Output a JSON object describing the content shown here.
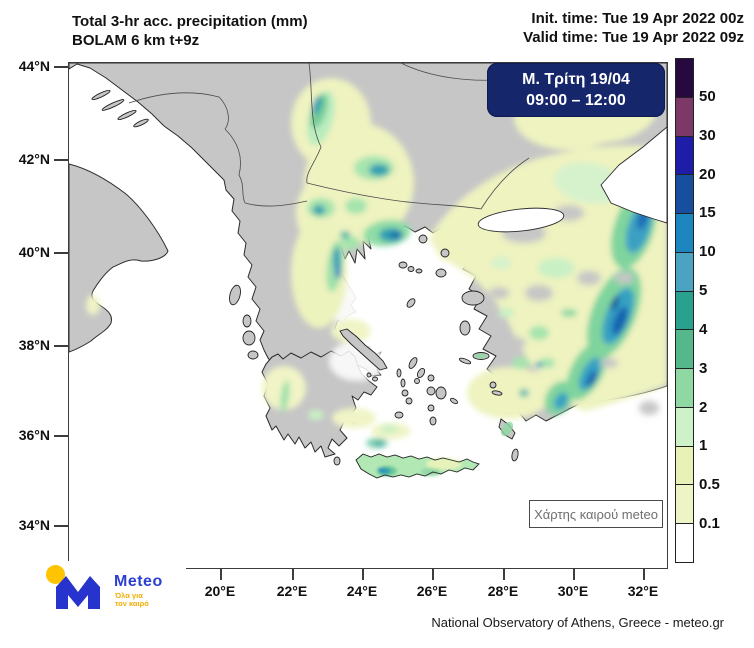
{
  "header": {
    "title_line1": "Total 3-hr acc. precipitation (mm)",
    "title_line2": "BOLAM 6 km t+9z",
    "init_time": "Init. time: Tue 19 Apr 2022 00z",
    "valid_time": "Valid time: Tue 19 Apr 2022 09z"
  },
  "badge": {
    "line1": "Μ. Τρίτη 19/04",
    "line2": "09:00 – 12:00",
    "bg_color": "#16266b",
    "text_color": "#ffffff"
  },
  "map": {
    "lat_labels": [
      "44°N",
      "42°N",
      "40°N",
      "38°N",
      "36°N",
      "34°N"
    ],
    "lon_labels": [
      "20°E",
      "22°E",
      "24°E",
      "26°E",
      "28°E",
      "30°E",
      "32°E"
    ],
    "land_color": "#c6c6c6",
    "sea_color": "#ffffff"
  },
  "colorbar": {
    "unit": "mm",
    "labels": [
      "50",
      "30",
      "20",
      "15",
      "10",
      "5",
      "4",
      "3",
      "2",
      "1",
      "0.5",
      "0.1"
    ],
    "colors": [
      "#26093f",
      "#7c3867",
      "#1d1da8",
      "#174f9e",
      "#1d86c0",
      "#4aa3c0",
      "#2aa18f",
      "#55b88c",
      "#8fd8a4",
      "#cdf2c9",
      "#e9f2b6",
      "#eef4c6",
      "#ffffff"
    ]
  },
  "tooltip": {
    "text": "Χάρτης καιρού meteo"
  },
  "logo": {
    "brand": "Meteo",
    "tagline_line1": "Όλα για",
    "tagline_line2": "τον καιρό",
    "brand_color": "#2b3fd0",
    "sun_color": "#ffc400",
    "m_color": "#2633cc"
  },
  "footer": {
    "attribution": "National Observatory of Athens, Greece - meteo.gr"
  }
}
